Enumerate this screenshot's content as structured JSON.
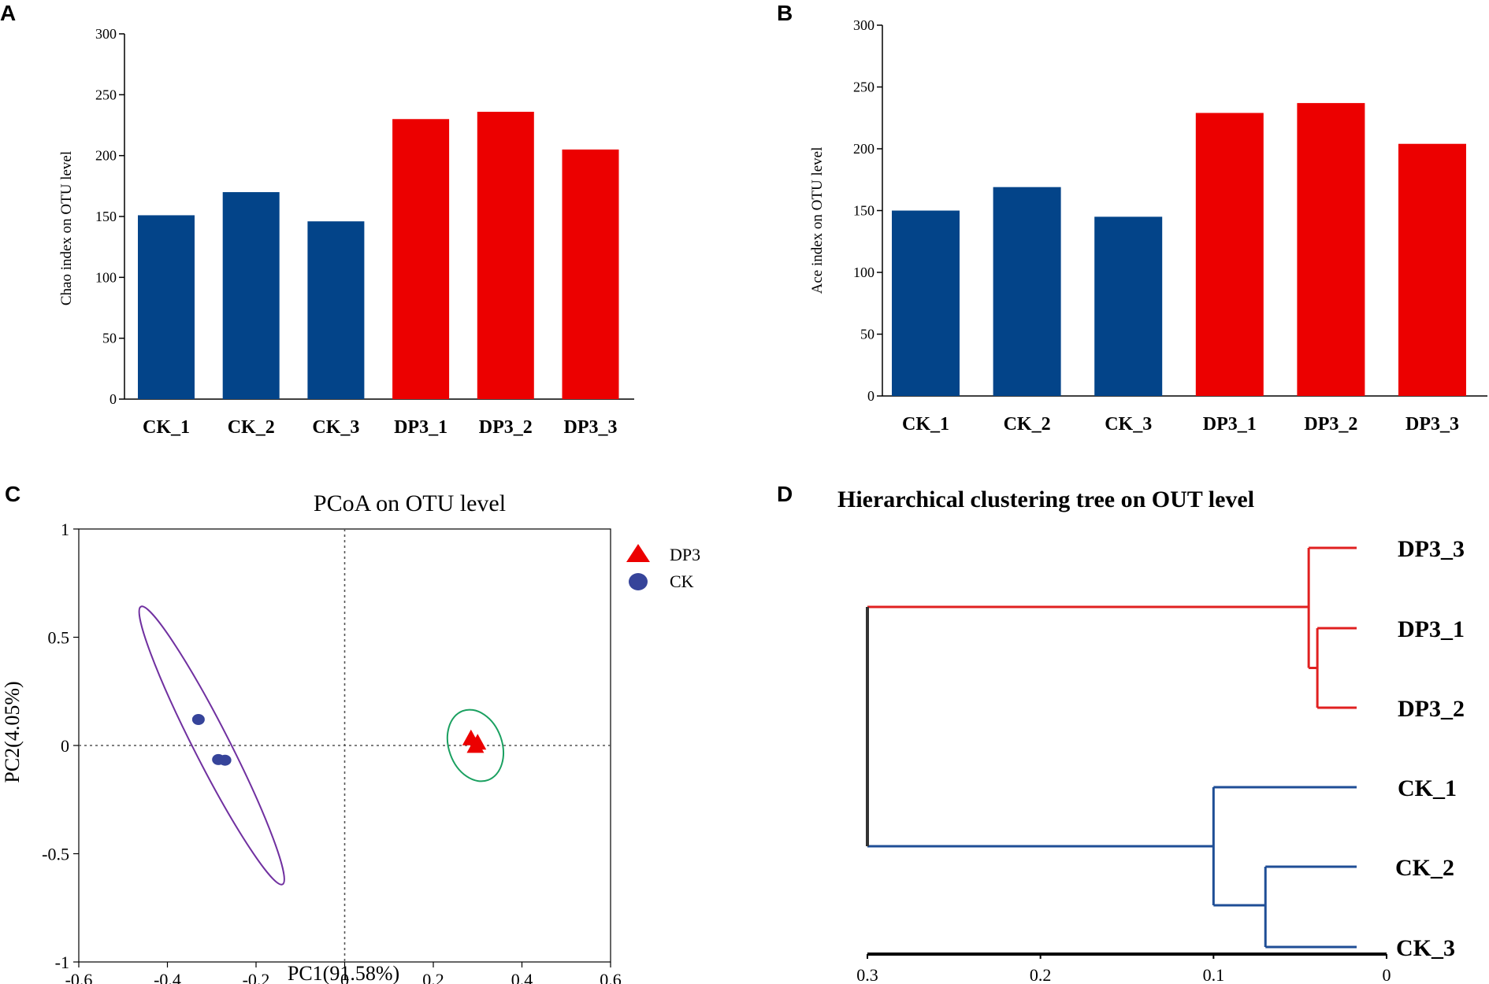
{
  "panels": {
    "a": "A",
    "b": "B",
    "c": "C",
    "d": "D"
  },
  "colors": {
    "ck": "#034489",
    "dp3": "#ec0000",
    "ck_point": "#36449a",
    "dp3_point": "#ec0000",
    "ck_ellipse": "#7030a0",
    "dp3_ellipse": "#1aa060",
    "ck_branch": "#1f4e96",
    "dp3_branch": "#e02020"
  },
  "chart_data": [
    {
      "id": "A",
      "type": "bar",
      "title": "",
      "xlabel": "",
      "ylabel": "Chao index on OTU level",
      "categories": [
        "CK_1",
        "CK_2",
        "CK_3",
        "DP3_1",
        "DP3_2",
        "DP3_3"
      ],
      "values": [
        151,
        170,
        146,
        230,
        236,
        205
      ],
      "groups": [
        "CK",
        "CK",
        "CK",
        "DP3",
        "DP3",
        "DP3"
      ],
      "ylim": [
        0,
        300
      ],
      "yticks": [
        "0",
        "50",
        "100",
        "150",
        "200",
        "250",
        "300"
      ]
    },
    {
      "id": "B",
      "type": "bar",
      "title": "",
      "xlabel": "",
      "ylabel": "Ace index on OTU level",
      "categories": [
        "CK_1",
        "CK_2",
        "CK_3",
        "DP3_1",
        "DP3_2",
        "DP3_3"
      ],
      "values": [
        150,
        169,
        145,
        229,
        237,
        204
      ],
      "groups": [
        "CK",
        "CK",
        "CK",
        "DP3",
        "DP3",
        "DP3"
      ],
      "ylim": [
        0,
        300
      ],
      "yticks": [
        "0",
        "50",
        "100",
        "150",
        "200",
        "250",
        "300"
      ]
    },
    {
      "id": "C",
      "type": "scatter",
      "title": "PCoA on OTU level",
      "xlabel": "PC1(91.58%)",
      "ylabel": "PC2(4.05%)",
      "xlim": [
        -0.6,
        0.6
      ],
      "ylim": [
        -1,
        1
      ],
      "xticks": [
        "-0.6",
        "-0.4",
        "-0.2",
        "0",
        "0.2",
        "0.4",
        "0.6"
      ],
      "yticks": [
        "-1",
        "-0.5",
        "0",
        "0.5",
        "1"
      ],
      "legend": [
        "DP3",
        "CK"
      ],
      "series": [
        {
          "name": "DP3",
          "marker": "triangle",
          "points": [
            [
              0.285,
              0.03
            ],
            [
              0.3,
              0.01
            ],
            [
              0.295,
              -0.005
            ]
          ]
        },
        {
          "name": "CK",
          "marker": "circle",
          "points": [
            [
              -0.33,
              0.12
            ],
            [
              -0.285,
              -0.065
            ],
            [
              -0.27,
              -0.068
            ]
          ]
        }
      ],
      "ellipses": [
        {
          "group": "DP3",
          "center": [
            0.295,
            0.0
          ],
          "rx": 0.06,
          "ry": 0.17,
          "angle_deg": 20
        },
        {
          "group": "CK",
          "center": [
            -0.3,
            0.0
          ],
          "rx": 0.04,
          "ry": 0.72,
          "angle_deg": 27
        }
      ]
    },
    {
      "id": "D",
      "type": "dendrogram",
      "title": "Hierarchical clustering tree on OUT level",
      "xlim": [
        0.3,
        0
      ],
      "xticks": [
        "0.3",
        "0.2",
        "0.1",
        "0"
      ],
      "leaves": [
        "DP3_3",
        "DP3_1",
        "DP3_2",
        "CK_1",
        "CK_2",
        "CK_3"
      ],
      "merges": [
        {
          "left": "DP3_1",
          "right": "DP3_2",
          "height": 0.04
        },
        {
          "left": "DP3_3",
          "right": "(DP3_1,DP3_2)",
          "height": 0.045
        },
        {
          "left": "CK_2",
          "right": "CK_3",
          "height": 0.07
        },
        {
          "left": "CK_1",
          "right": "(CK_2,CK_3)",
          "height": 0.1
        },
        {
          "left": "DP3 cluster",
          "right": "CK cluster",
          "height": 0.3
        }
      ]
    }
  ]
}
